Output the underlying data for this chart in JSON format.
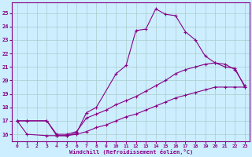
{
  "xlabel": "Windchill (Refroidissement éolien,°C)",
  "bg_color": "#cceeff",
  "line_color": "#880088",
  "grid_color": "#aacccc",
  "xlim": [
    -0.5,
    23.5
  ],
  "ylim": [
    15.5,
    25.8
  ],
  "xticks": [
    0,
    1,
    2,
    3,
    4,
    5,
    6,
    7,
    8,
    9,
    10,
    11,
    12,
    13,
    14,
    15,
    16,
    17,
    18,
    19,
    20,
    21,
    22,
    23
  ],
  "yticks": [
    16,
    17,
    18,
    19,
    20,
    21,
    22,
    23,
    24,
    25
  ],
  "line1_x": [
    0,
    1,
    3,
    4,
    5,
    6,
    7,
    8,
    10,
    11,
    12,
    13,
    14,
    15,
    16,
    17,
    18,
    19,
    20,
    21,
    22,
    23
  ],
  "line1_y": [
    17.0,
    16.0,
    15.9,
    15.9,
    15.9,
    16.1,
    17.6,
    18.0,
    20.5,
    21.1,
    23.7,
    23.8,
    25.3,
    24.9,
    24.8,
    23.6,
    23.0,
    21.8,
    21.3,
    21.0,
    20.9,
    19.5
  ],
  "line2_x": [
    0,
    1,
    3,
    4,
    5,
    6,
    7,
    8,
    9,
    10,
    11,
    12,
    13,
    14,
    15,
    16,
    17,
    18,
    19,
    20,
    21,
    22,
    23
  ],
  "line2_y": [
    17.0,
    17.0,
    17.0,
    16.0,
    16.0,
    16.2,
    17.2,
    17.5,
    17.8,
    18.2,
    18.5,
    18.8,
    19.2,
    19.6,
    20.0,
    20.5,
    20.8,
    21.0,
    21.2,
    21.3,
    21.2,
    20.8,
    19.6
  ],
  "line3_x": [
    0,
    1,
    3,
    4,
    5,
    6,
    7,
    8,
    9,
    10,
    11,
    12,
    13,
    14,
    15,
    16,
    17,
    18,
    19,
    20,
    21,
    22,
    23
  ],
  "line3_y": [
    17.0,
    17.0,
    17.0,
    15.9,
    15.9,
    16.0,
    16.2,
    16.5,
    16.7,
    17.0,
    17.3,
    17.5,
    17.8,
    18.1,
    18.4,
    18.7,
    18.9,
    19.1,
    19.3,
    19.5,
    19.5,
    19.5,
    19.5
  ]
}
